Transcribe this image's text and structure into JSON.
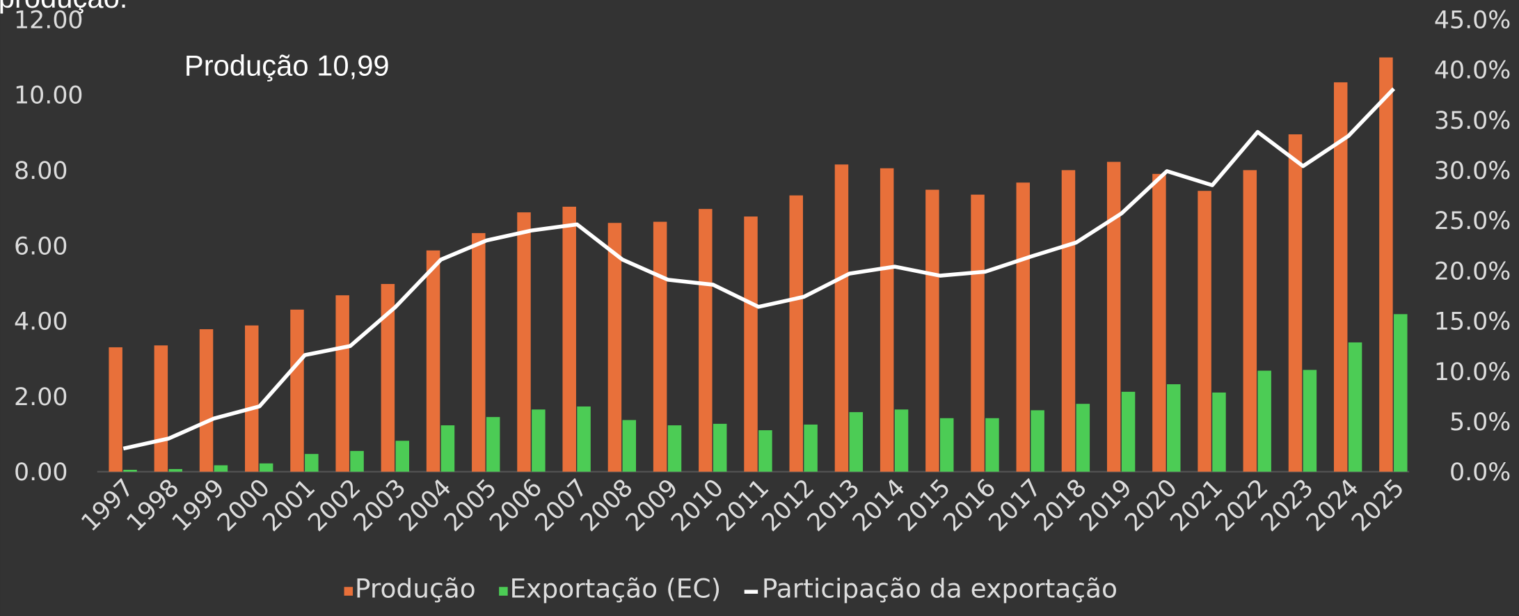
{
  "chart_data": {
    "type": "bar-line",
    "annotations": [
      "produção.",
      "Produção 10,99"
    ],
    "categories": [
      "1997",
      "1998",
      "1999",
      "2000",
      "2001",
      "2002",
      "2003",
      "2004",
      "2005",
      "2006",
      "2007",
      "2008",
      "2009",
      "2010",
      "2011",
      "2012",
      "2013",
      "2014",
      "2015",
      "2016",
      "2017",
      "2018",
      "2019",
      "2020",
      "2021",
      "2022",
      "2023",
      "2024",
      "2025"
    ],
    "series": [
      {
        "name": "Produção",
        "color": "#e8703a",
        "type": "bar",
        "values": [
          3.3,
          3.35,
          3.78,
          3.88,
          4.3,
          4.68,
          4.98,
          5.87,
          6.33,
          6.88,
          7.03,
          6.6,
          6.63,
          6.97,
          6.77,
          7.33,
          8.15,
          8.05,
          7.48,
          7.35,
          7.67,
          8.0,
          8.22,
          7.9,
          7.45,
          8.0,
          8.95,
          10.33,
          10.99
        ]
      },
      {
        "name": "Exportação (EC)",
        "color": "#4ccc55",
        "type": "bar",
        "values": [
          0.05,
          0.07,
          0.17,
          0.22,
          0.47,
          0.55,
          0.82,
          1.23,
          1.45,
          1.65,
          1.73,
          1.37,
          1.23,
          1.27,
          1.1,
          1.25,
          1.58,
          1.65,
          1.42,
          1.42,
          1.63,
          1.8,
          2.12,
          2.32,
          2.1,
          2.68,
          2.7,
          3.43,
          4.18
        ]
      },
      {
        "name": "Participação da exportação",
        "color": "#ffffff",
        "type": "line",
        "axis": "y2",
        "values": [
          2.3,
          3.3,
          5.3,
          6.5,
          11.6,
          12.5,
          16.4,
          21.1,
          23.0,
          24.0,
          24.6,
          21.1,
          19.1,
          18.6,
          16.4,
          17.4,
          19.7,
          20.4,
          19.5,
          19.9,
          21.4,
          22.8,
          25.7,
          29.9,
          28.5,
          33.8,
          30.4,
          33.4,
          38.1
        ]
      }
    ],
    "ylim": [
      0,
      12
    ],
    "yticks": [
      {
        "value": 0,
        "label": "0.00"
      },
      {
        "value": 2,
        "label": "2.00"
      },
      {
        "value": 4,
        "label": "4.00"
      },
      {
        "value": 6,
        "label": "6.00"
      },
      {
        "value": 8,
        "label": "8.00"
      },
      {
        "value": 10,
        "label": "10.00"
      },
      {
        "value": 12,
        "label": "12.00"
      }
    ],
    "y2lim": [
      0,
      45
    ],
    "y2ticks": [
      {
        "value": 0,
        "label": "0.0%"
      },
      {
        "value": 5,
        "label": "5.0%"
      },
      {
        "value": 10,
        "label": "10.0%"
      },
      {
        "value": 15,
        "label": "15.0%"
      },
      {
        "value": 20,
        "label": "20.0%"
      },
      {
        "value": 25,
        "label": "25.0%"
      },
      {
        "value": 30,
        "label": "30.0%"
      },
      {
        "value": 35,
        "label": "35.0%"
      },
      {
        "value": 40,
        "label": "40.0%"
      },
      {
        "value": 45,
        "label": "45.0%"
      }
    ],
    "grid": false,
    "legend": "bottom"
  }
}
